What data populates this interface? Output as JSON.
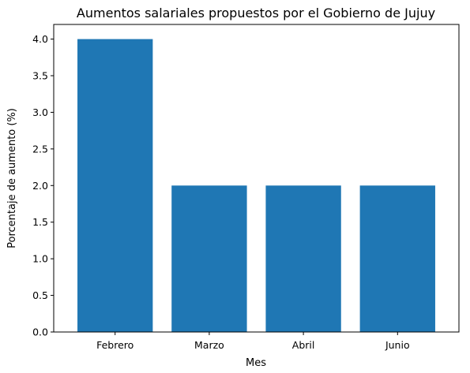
{
  "chart_data": {
    "type": "bar",
    "title": "Aumentos salariales propuestos por el Gobierno de Jujuy",
    "xlabel": "Mes",
    "ylabel": "Porcentaje de aumento (%)",
    "categories": [
      "Febrero",
      "Marzo",
      "Abril",
      "Junio"
    ],
    "values": [
      4.0,
      2.0,
      2.0,
      2.0
    ],
    "ylim": [
      0,
      4.2
    ],
    "yticks": [
      "0.0",
      "0.5",
      "1.0",
      "1.5",
      "2.0",
      "2.5",
      "3.0",
      "3.5",
      "4.0"
    ],
    "bar_color": "#1f77b4",
    "grid": false,
    "legend": "none"
  }
}
